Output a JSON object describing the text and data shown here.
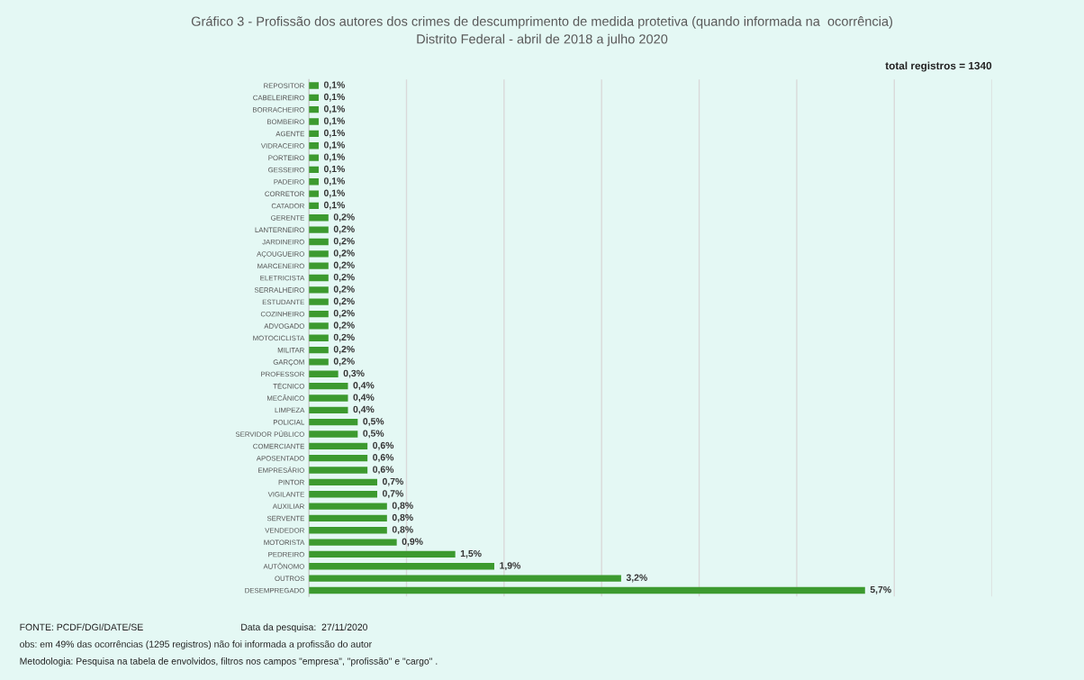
{
  "chart_data": {
    "type": "bar",
    "orientation": "horizontal",
    "title": "Gráfico 3 - Profissão dos autores dos crimes de descumprimento de medida protetiva (quando informada na  ocorrência)",
    "subtitle": "Distrito Federal - abril de 2018 a julho 2020",
    "categories": [
      "REPOSITOR",
      "CABELEIREIRO",
      "BORRACHEIRO",
      "BOMBEIRO",
      "AGENTE",
      "VIDRACEIRO",
      "PORTEIRO",
      "GESSEIRO",
      "PADEIRO",
      "CORRETOR",
      "CATADOR",
      "GERENTE",
      "LANTERNEIRO",
      "JARDINEIRO",
      "AÇOUGUEIRO",
      "MARCENEIRO",
      "ELETRICISTA",
      "SERRALHEIRO",
      "ESTUDANTE",
      "COZINHEIRO",
      "ADVOGADO",
      "MOTOCICLISTA",
      "MILITAR",
      "GARÇOM",
      "PROFESSOR",
      "TÉCNICO",
      "MECÂNICO",
      "LIMPEZA",
      "POLICIAL",
      "SERVIDOR PÚBLICO",
      "COMERCIANTE",
      "APOSENTADO",
      "EMPRESÁRIO",
      "PINTOR",
      "VIGILANTE",
      "AUXILIAR",
      "SERVENTE",
      "VENDEDOR",
      "MOTORISTA",
      "PEDREIRO",
      "AUTÔNOMO",
      "OUTROS",
      "DESEMPREGADO"
    ],
    "values": [
      0.1,
      0.1,
      0.1,
      0.1,
      0.1,
      0.1,
      0.1,
      0.1,
      0.1,
      0.1,
      0.1,
      0.2,
      0.2,
      0.2,
      0.2,
      0.2,
      0.2,
      0.2,
      0.2,
      0.2,
      0.2,
      0.2,
      0.2,
      0.2,
      0.3,
      0.4,
      0.4,
      0.4,
      0.5,
      0.5,
      0.6,
      0.6,
      0.6,
      0.7,
      0.7,
      0.8,
      0.8,
      0.8,
      0.9,
      1.5,
      1.9,
      3.2,
      5.7
    ],
    "value_labels": [
      "0,1%",
      "0,1%",
      "0,1%",
      "0,1%",
      "0,1%",
      "0,1%",
      "0,1%",
      "0,1%",
      "0,1%",
      "0,1%",
      "0,1%",
      "0,2%",
      "0,2%",
      "0,2%",
      "0,2%",
      "0,2%",
      "0,2%",
      "0,2%",
      "0,2%",
      "0,2%",
      "0,2%",
      "0,2%",
      "0,2%",
      "0,2%",
      "0,3%",
      "0,4%",
      "0,4%",
      "0,4%",
      "0,5%",
      "0,5%",
      "0,6%",
      "0,6%",
      "0,6%",
      "0,7%",
      "0,7%",
      "0,8%",
      "0,8%",
      "0,8%",
      "0,9%",
      "1,5%",
      "1,9%",
      "3,2%",
      "5,7%"
    ],
    "color": "#3c9a2f",
    "xlim": [
      0,
      7
    ],
    "xticks": [
      {
        "value": 1,
        "label": null
      },
      {
        "value": 2,
        "label": null
      },
      {
        "value": 3,
        "label": null
      },
      {
        "value": 4,
        "label": null
      },
      {
        "value": 5,
        "label": null
      },
      {
        "value": 6,
        "label": null
      },
      {
        "value": 7,
        "label": null
      }
    ],
    "tick_labels": "y",
    "grid": "x",
    "annotations": [
      "total registros = 1340",
      "FONTE: PCDF/DGI/DATE/SE",
      "Data da pesquisa:  27/11/2020",
      "obs: em 49% das ocorrências (1295 registros) não foi informada a profissão do autor",
      "Metodologia: Pesquisa na tabela de envolvidos, filtros nos campos \"empresa\", \"profissão\" e \"cargo\" ."
    ]
  }
}
